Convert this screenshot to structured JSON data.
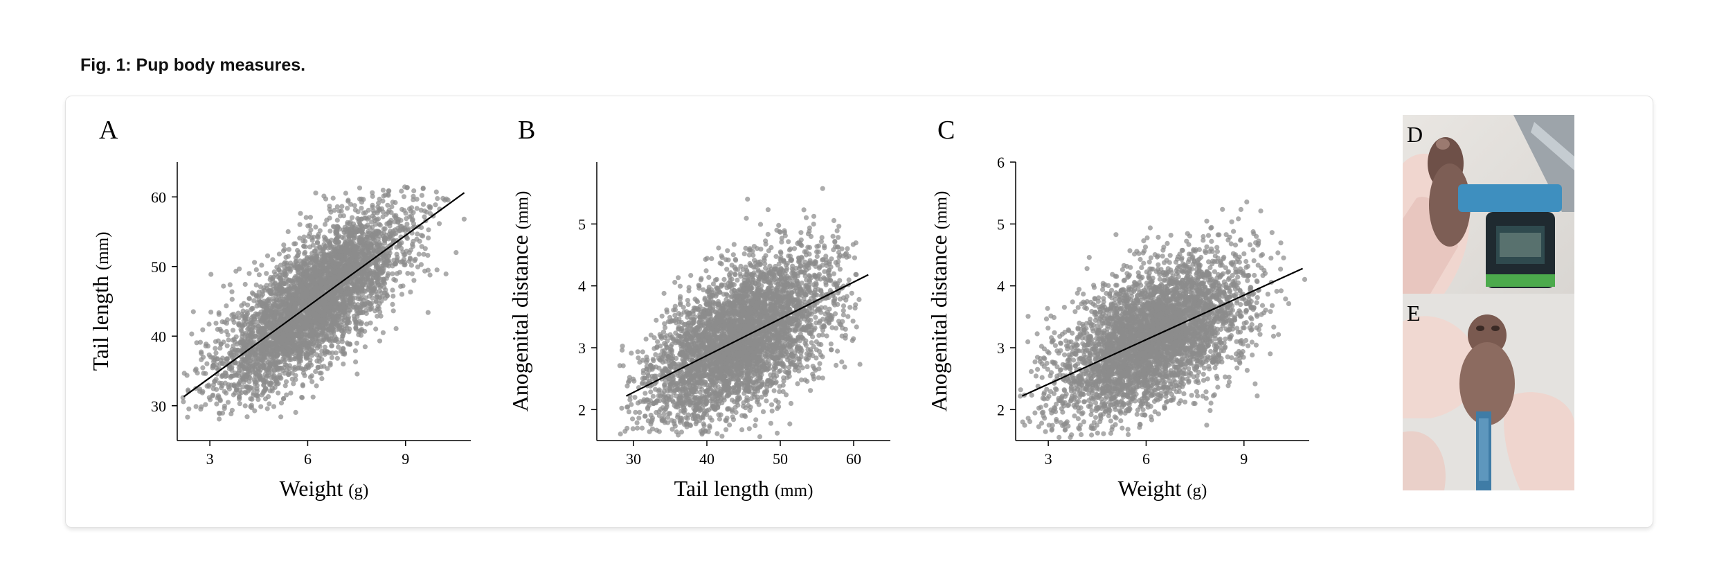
{
  "figure": {
    "caption": "Fig. 1: Pup body measures.",
    "point_color": "#8c8c8c",
    "line_color": "#000000"
  },
  "photos": [
    {
      "letter": "D",
      "icon": "pup-held-with-caliper-photo"
    },
    {
      "letter": "E",
      "icon": "pup-anogenital-measurement-photo"
    }
  ],
  "chart_data": [
    {
      "type": "scatter",
      "panel": "A",
      "xlabel": "Weight",
      "xunit": "(g)",
      "ylabel": "Tail length",
      "yunit": "(mm)",
      "xlim": [
        2,
        11
      ],
      "ylim": [
        25,
        65
      ],
      "xticks": [
        3,
        6,
        9
      ],
      "yticks": [
        30,
        40,
        50,
        60
      ],
      "grid": false,
      "n_points": 4200,
      "x_distribution": {
        "mean": 6.2,
        "sd": 1.45,
        "min": 2.1,
        "max": 10.9
      },
      "y_relation": {
        "sd": 4.3,
        "min": 28,
        "max": 61.5
      },
      "fit_line": {
        "x": [
          2.2,
          10.8
        ],
        "y": [
          31.3,
          60.6
        ]
      }
    },
    {
      "type": "scatter",
      "panel": "B",
      "xlabel": "Tail length",
      "xunit": "(mm)",
      "ylabel": "Anogenital distance",
      "yunit": "(mm)",
      "xlim": [
        25,
        65
      ],
      "ylim": [
        1.5,
        6
      ],
      "xticks": [
        30,
        40,
        50,
        60
      ],
      "yticks": [
        2,
        3,
        4,
        5
      ],
      "grid": false,
      "n_points": 4200,
      "x_distribution": {
        "mean": 44.5,
        "sd": 6.2,
        "min": 28,
        "max": 61
      },
      "y_relation": {
        "sd": 0.55,
        "min": 1.55,
        "max": 5.8
      },
      "fit_line": {
        "x": [
          29,
          62
        ],
        "y": [
          2.22,
          4.18
        ]
      }
    },
    {
      "type": "scatter",
      "panel": "C",
      "xlabel": "Weight",
      "xunit": "(g)",
      "ylabel": "Anogenital distance",
      "yunit": "(mm)",
      "xlim": [
        2,
        11
      ],
      "ylim": [
        1.5,
        6
      ],
      "xticks": [
        3,
        6,
        9
      ],
      "yticks": [
        2,
        3,
        4,
        5,
        6
      ],
      "grid": false,
      "n_points": 4200,
      "x_distribution": {
        "mean": 6.2,
        "sd": 1.45,
        "min": 2.1,
        "max": 10.9
      },
      "y_relation": {
        "sd": 0.55,
        "min": 1.55,
        "max": 5.8
      },
      "fit_line": {
        "x": [
          2.2,
          10.8
        ],
        "y": [
          2.22,
          4.28
        ]
      }
    }
  ]
}
